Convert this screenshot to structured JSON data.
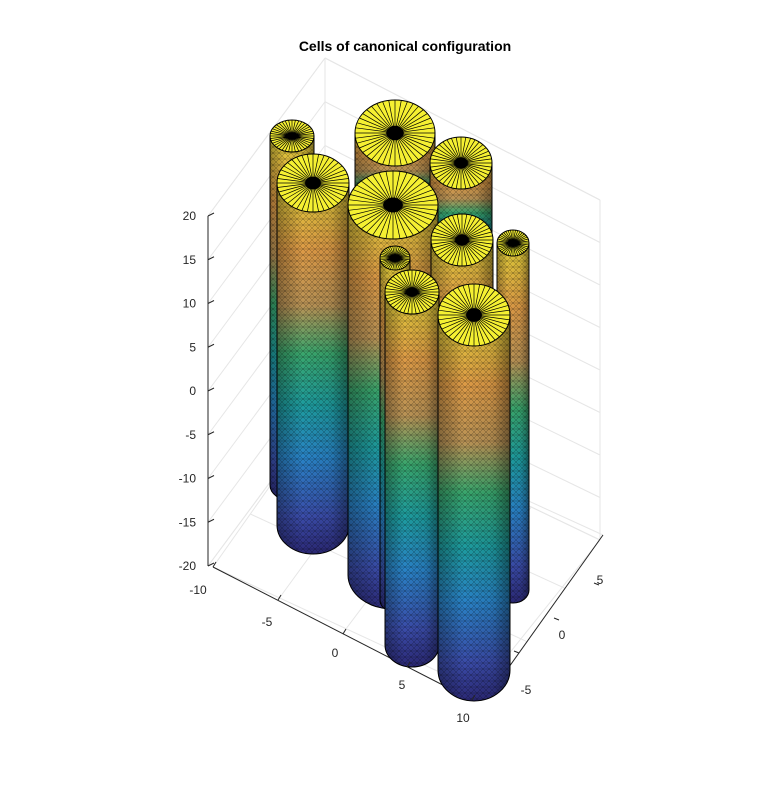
{
  "chart_data": {
    "type": "3d-surface",
    "title": "Cells of canonical configuration",
    "xlabel": "",
    "ylabel": "",
    "zlabel": "",
    "grid": true,
    "colormap": "parula",
    "xlim": [
      -10,
      10
    ],
    "ylim": [
      -8,
      8
    ],
    "zlim": [
      -20,
      20
    ],
    "x_ticks": [
      "-10",
      "-5",
      "0",
      "5",
      "10"
    ],
    "y_ticks": [
      "-5",
      "0",
      "5"
    ],
    "z_ticks": [
      "20",
      "15",
      "10",
      "5",
      "0",
      "-5",
      "-10",
      "-15",
      "-20"
    ],
    "colors": {
      "top_cap": "#f5f032",
      "edge": "#000000",
      "grid": "#e6e6e6",
      "axis": "#262626"
    }
  }
}
